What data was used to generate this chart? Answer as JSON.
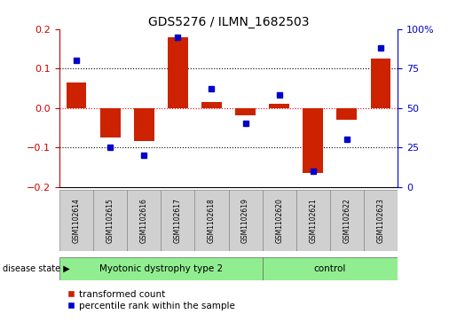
{
  "title": "GDS5276 / ILMN_1682503",
  "samples": [
    "GSM1102614",
    "GSM1102615",
    "GSM1102616",
    "GSM1102617",
    "GSM1102618",
    "GSM1102619",
    "GSM1102620",
    "GSM1102621",
    "GSM1102622",
    "GSM1102623"
  ],
  "red_bars": [
    0.065,
    -0.075,
    -0.085,
    0.18,
    0.015,
    -0.02,
    0.01,
    -0.165,
    -0.03,
    0.125
  ],
  "blue_dots_pct": [
    80,
    25,
    20,
    95,
    62,
    40,
    58,
    10,
    30,
    88
  ],
  "groups": [
    {
      "label": "Myotonic dystrophy type 2",
      "start": 0,
      "end": 6,
      "color": "#90ee90"
    },
    {
      "label": "control",
      "start": 6,
      "end": 10,
      "color": "#90ee90"
    }
  ],
  "ylim": [
    -0.2,
    0.2
  ],
  "yticks_left": [
    -0.2,
    -0.1,
    0.0,
    0.1,
    0.2
  ],
  "yticks_right": [
    0,
    25,
    50,
    75,
    100
  ],
  "ylabel_left_color": "#cc0000",
  "ylabel_right_color": "#0000cc",
  "hlines": [
    0.1,
    0.0,
    -0.1
  ],
  "hline_colors": [
    "black",
    "red",
    "black"
  ],
  "hline_styles": [
    "dotted",
    "dotted",
    "dotted"
  ],
  "bar_color": "#cc2200",
  "dot_color": "#0000cc",
  "disease_state_label": "disease state",
  "legend_items": [
    "transformed count",
    "percentile rank within the sample"
  ],
  "bar_width": 0.6,
  "sample_box_color": "#d0d0d0",
  "n_disease": 6,
  "n_control": 4
}
